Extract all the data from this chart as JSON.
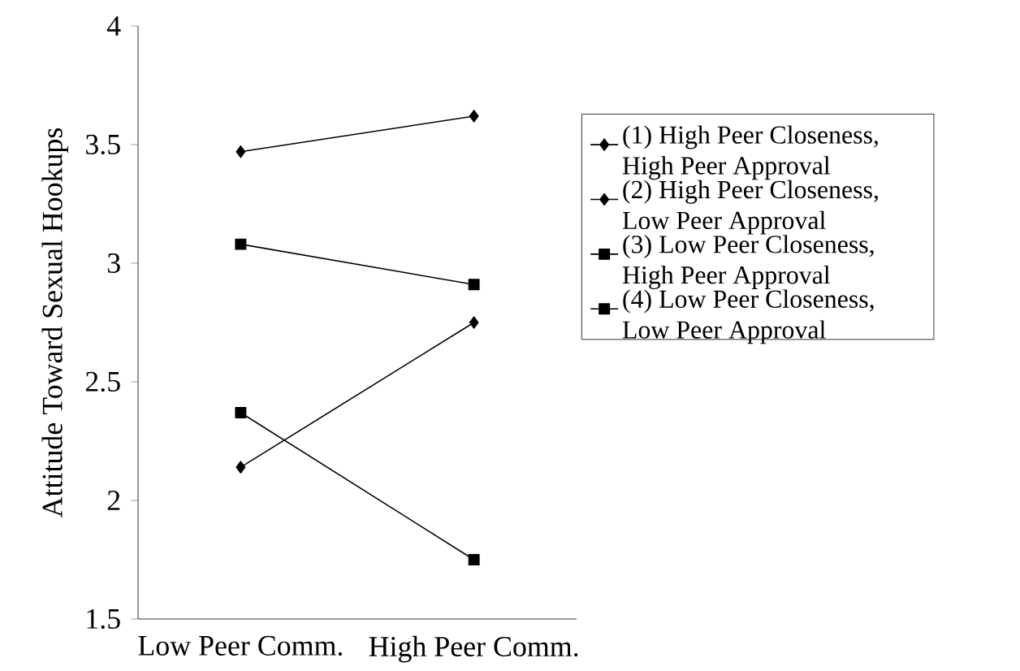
{
  "chart_data": {
    "type": "line",
    "ylabel": "Attitude Toward Sexual Hookups",
    "categories": [
      "Low Peer Comm.",
      "High Peer Comm."
    ],
    "ylim": [
      1.5,
      4
    ],
    "yticks": [
      1.5,
      2,
      2.5,
      3,
      3.5,
      4
    ],
    "legend": "right",
    "series": [
      {
        "name": "(1) High Peer Closeness, High Peer Approval",
        "color": "#000000",
        "marker": "diamond",
        "values": [
          3.47,
          3.62
        ]
      },
      {
        "name": "(2) High Peer Closeness, Low Peer Approval",
        "color": "#000000",
        "marker": "diamond",
        "values": [
          2.14,
          2.75
        ]
      },
      {
        "name": "(3) Low Peer Closeness, High Peer Approval",
        "color": "#000000",
        "marker": "square",
        "values": [
          3.08,
          2.91
        ]
      },
      {
        "name": "(4) Low Peer Closeness, Low Peer Approval",
        "color": "#000000",
        "marker": "square",
        "values": [
          2.37,
          1.75
        ]
      }
    ]
  }
}
